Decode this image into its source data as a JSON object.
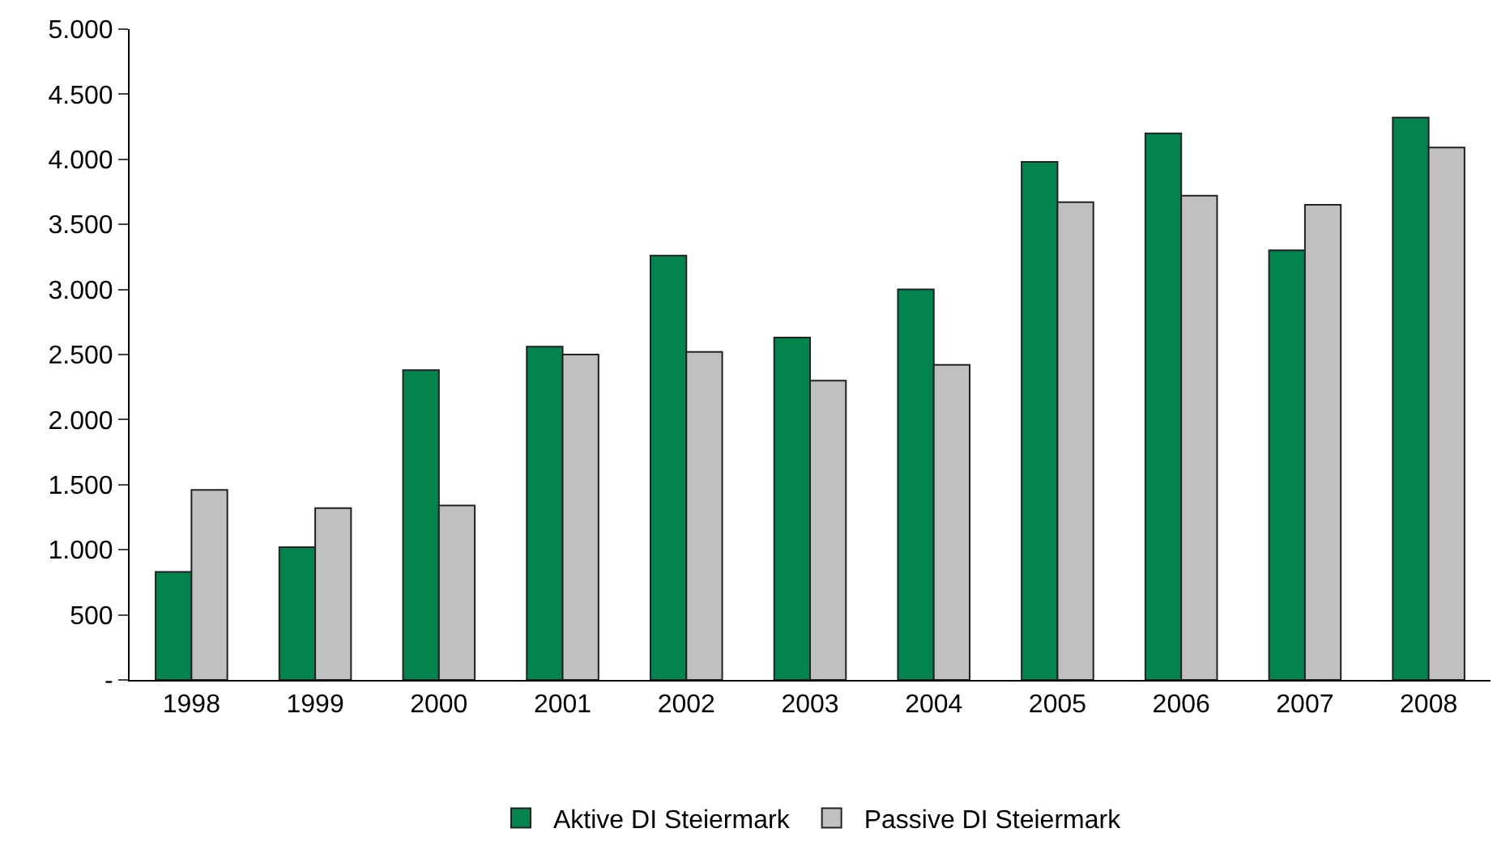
{
  "chart_data": {
    "type": "bar",
    "categories": [
      "1998",
      "1999",
      "2000",
      "2001",
      "2002",
      "2003",
      "2004",
      "2005",
      "2006",
      "2007",
      "2008"
    ],
    "series": [
      {
        "name": "Aktive DI Steiermark",
        "color": "#03844f",
        "values": [
          830,
          1020,
          2380,
          2560,
          3260,
          2630,
          3000,
          3980,
          4200,
          3300,
          4320
        ]
      },
      {
        "name": "Passive DI Steiermark",
        "color": "#c0c0c0",
        "values": [
          1460,
          1320,
          1340,
          2500,
          2520,
          2300,
          2420,
          3670,
          3720,
          3650,
          4090
        ]
      }
    ],
    "ylim": [
      0,
      5000
    ],
    "yticks": [
      {
        "value": 0,
        "label": "-"
      },
      {
        "value": 500,
        "label": "500"
      },
      {
        "value": 1000,
        "label": "1.000"
      },
      {
        "value": 1500,
        "label": "1.500"
      },
      {
        "value": 2000,
        "label": "2.000"
      },
      {
        "value": 2500,
        "label": "2.500"
      },
      {
        "value": 3000,
        "label": "3.000"
      },
      {
        "value": 3500,
        "label": "3.500"
      },
      {
        "value": 4000,
        "label": "4.000"
      },
      {
        "value": 4500,
        "label": "4.500"
      },
      {
        "value": 5000,
        "label": "5.000"
      }
    ],
    "grid": false,
    "legend": "bottom"
  }
}
